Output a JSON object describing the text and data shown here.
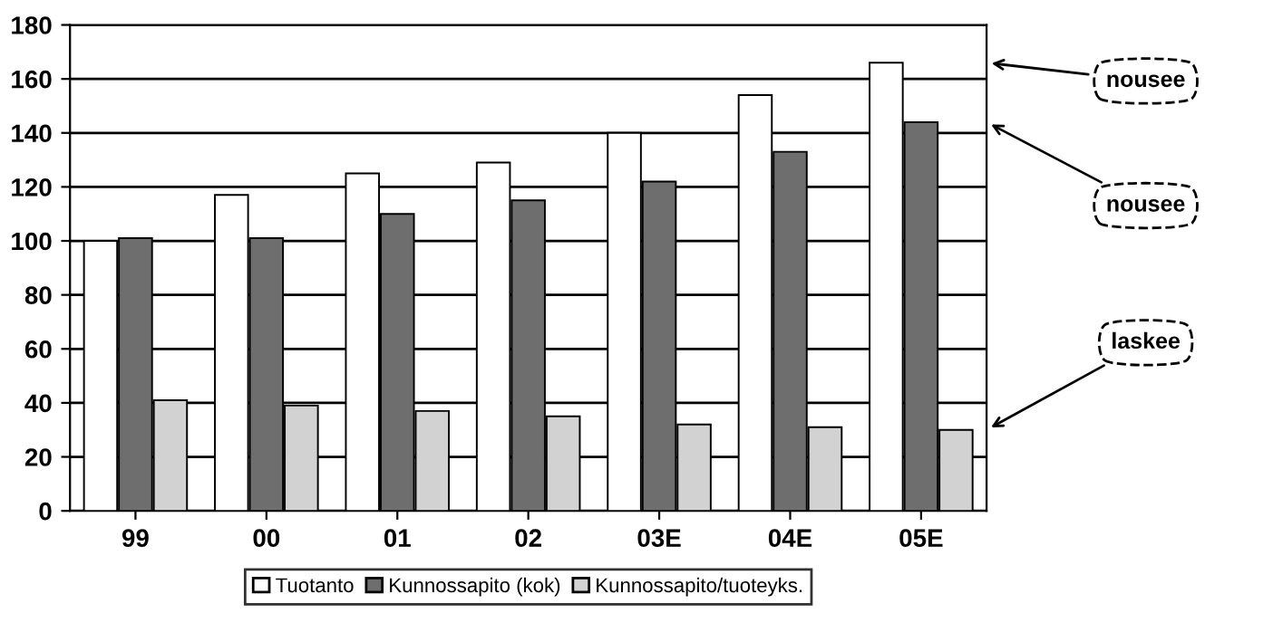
{
  "chart_data": {
    "type": "bar",
    "categories": [
      "99",
      "00",
      "01",
      "02",
      "03E",
      "04E",
      "05E"
    ],
    "series": [
      {
        "name": "Tuotanto",
        "color": "#ffffff",
        "values": [
          100,
          117,
          125,
          129,
          140,
          154,
          166
        ]
      },
      {
        "name": "Kunnossapito (kok)",
        "color": "#6e6e6e",
        "values": [
          101,
          101,
          110,
          115,
          122,
          133,
          144
        ]
      },
      {
        "name": "Kunnossapito/tuoteyks.",
        "color": "#d2d2d2",
        "values": [
          41,
          39,
          37,
          35,
          32,
          31,
          30
        ]
      }
    ],
    "ylim": [
      0,
      180
    ],
    "yticks": [
      0,
      20,
      40,
      60,
      80,
      100,
      120,
      140,
      160,
      180
    ],
    "grid": "y",
    "legend": "bottom",
    "annotations": [
      "nousee",
      "nousee",
      "laskee"
    ]
  }
}
